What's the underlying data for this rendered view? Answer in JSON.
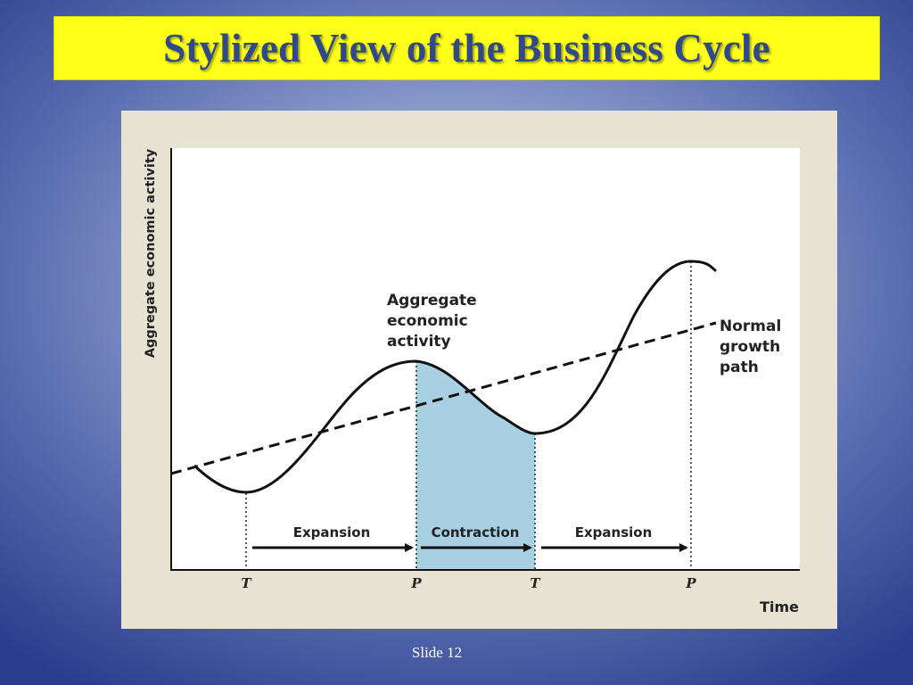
{
  "slide": {
    "title": "Stylized View of the Business Cycle",
    "slide_number": "Slide 12"
  },
  "diagram": {
    "y_axis_label": "Aggregate economic activity",
    "x_axis_label": "Time",
    "curve_label": [
      "Aggregate",
      "economic",
      "activity"
    ],
    "trend_label": [
      "Normal",
      "growth",
      "path"
    ],
    "phases": [
      {
        "label": "Expansion"
      },
      {
        "label": "Contraction"
      },
      {
        "label": "Expansion"
      }
    ],
    "turning_points": [
      "T",
      "P",
      "T",
      "P"
    ],
    "colors": {
      "contraction_fill": "#a8cfe2",
      "title_background": "#ffff1a",
      "title_text": "#2f4a86",
      "panel_background": "#e6e3d2"
    }
  }
}
